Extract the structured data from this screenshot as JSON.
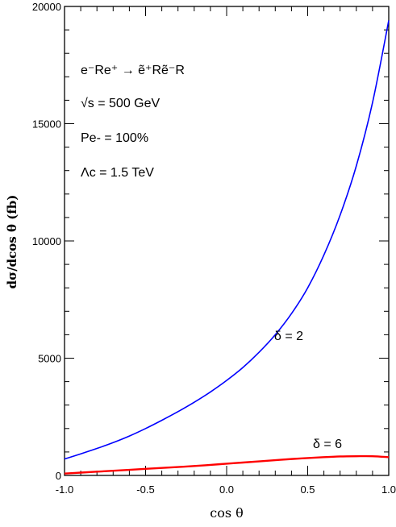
{
  "chart_data": {
    "type": "line",
    "xlabel": "cos θ",
    "ylabel": "dσ/dcos θ (fb)",
    "xlim": [
      -1.0,
      1.0
    ],
    "ylim": [
      0,
      20000
    ],
    "x_ticks": [
      "-1.0",
      "-0.5",
      "0.0",
      "0.5",
      "1.0"
    ],
    "y_ticks": [
      "0",
      "5000",
      "10000",
      "15000",
      "20000"
    ],
    "annotations": {
      "process_main": "e⁻Re⁺ → ẽ⁺Rẽ⁻R",
      "sqrt_s": "√s = 500 GeV",
      "polarization": "Pe- = 100%",
      "lambda": "Λc = 1.5 TeV"
    },
    "series": [
      {
        "name": "δ = 2",
        "color": "#0000ff",
        "x": [
          -1.0,
          -0.9,
          -0.8,
          -0.7,
          -0.6,
          -0.5,
          -0.4,
          -0.3,
          -0.2,
          -0.1,
          0.0,
          0.1,
          0.2,
          0.3,
          0.4,
          0.5,
          0.6,
          0.7,
          0.8,
          0.9,
          1.0
        ],
        "y": [
          700,
          920,
          1150,
          1400,
          1680,
          2000,
          2350,
          2720,
          3120,
          3560,
          4050,
          4600,
          5250,
          6000,
          6900,
          8000,
          9400,
          11100,
          13200,
          15900,
          19400
        ]
      },
      {
        "name": "δ = 6",
        "color": "#ff0000",
        "x": [
          -1.0,
          -0.9,
          -0.8,
          -0.7,
          -0.6,
          -0.5,
          -0.4,
          -0.3,
          -0.2,
          -0.1,
          0.0,
          0.1,
          0.2,
          0.3,
          0.4,
          0.5,
          0.6,
          0.7,
          0.8,
          0.9,
          1.0
        ],
        "y": [
          80,
          120,
          160,
          200,
          240,
          280,
          320,
          360,
          400,
          450,
          500,
          550,
          600,
          650,
          700,
          740,
          780,
          810,
          820,
          820,
          780
        ]
      }
    ]
  }
}
